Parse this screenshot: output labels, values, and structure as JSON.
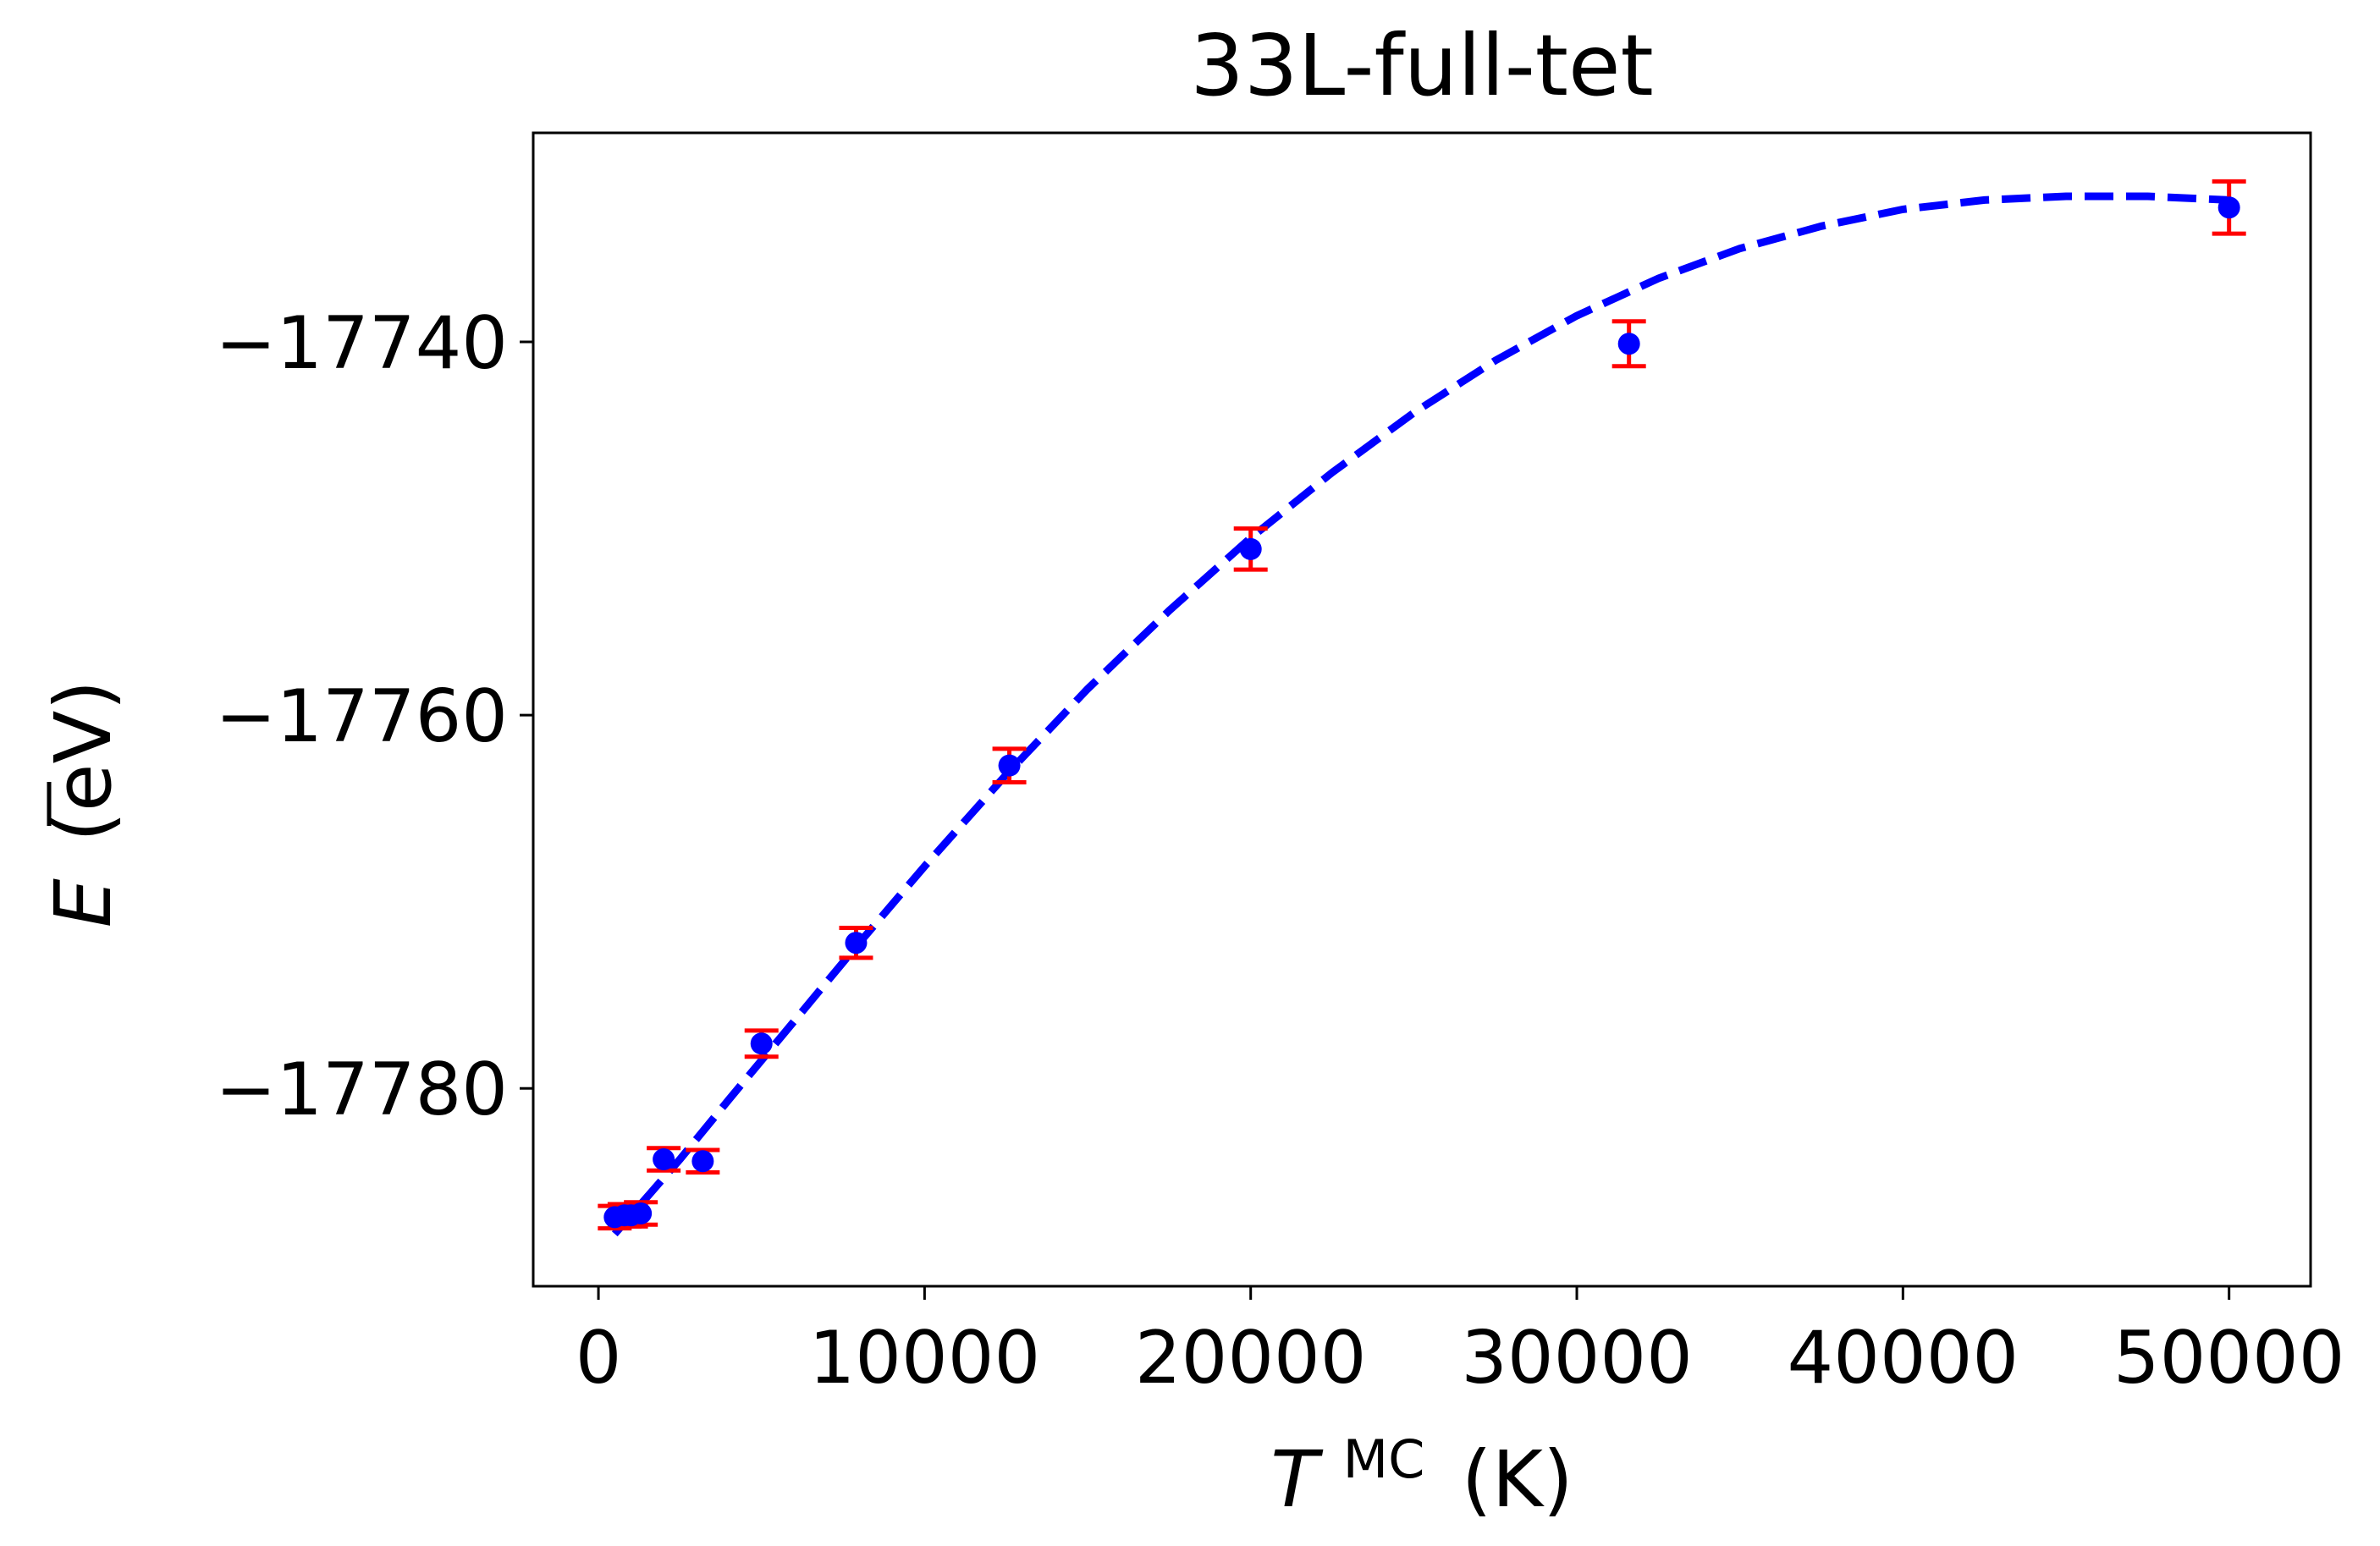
{
  "chart_data": {
    "type": "scatter",
    "title": "33L-full-tet",
    "xlabel": {
      "symbol": "T",
      "superscript": "MC",
      "unit": "(K)"
    },
    "ylabel": {
      "symbol": "E",
      "unit": "(eV)"
    },
    "xlim": [
      -2000,
      52500
    ],
    "ylim": [
      -17790.6,
      -17728.8
    ],
    "xticks": [
      0,
      10000,
      20000,
      30000,
      40000,
      50000
    ],
    "xtick_labels": [
      "0",
      "10000",
      "20000",
      "30000",
      "40000",
      "50000"
    ],
    "yticks": [
      -17740,
      -17760,
      -17780
    ],
    "ytick_labels": [
      "−17740",
      "−17760",
      "−17780"
    ],
    "grid": false,
    "colors": {
      "points": "#0000ff",
      "error_bars": "#ff0000",
      "fit_line": "#0000ff",
      "axes": "#000000"
    },
    "series": [
      {
        "kind": "points_with_error_bars",
        "points": [
          {
            "x": 500,
            "y": -17786.9,
            "err": 0.6
          },
          {
            "x": 800,
            "y": -17786.8,
            "err": 0.6
          },
          {
            "x": 1000,
            "y": -17786.8,
            "err": 0.6
          },
          {
            "x": 1300,
            "y": -17786.7,
            "err": 0.6
          },
          {
            "x": 2000,
            "y": -17783.8,
            "err": 0.6
          },
          {
            "x": 3200,
            "y": -17783.9,
            "err": 0.6
          },
          {
            "x": 5000,
            "y": -17777.6,
            "err": 0.7
          },
          {
            "x": 7900,
            "y": -17772.2,
            "err": 0.8
          },
          {
            "x": 12600,
            "y": -17762.7,
            "err": 0.9
          },
          {
            "x": 20000,
            "y": -17751.1,
            "err": 1.1
          },
          {
            "x": 31600,
            "y": -17740.1,
            "err": 1.2
          },
          {
            "x": 50000,
            "y": -17732.8,
            "err": 1.4
          }
        ]
      },
      {
        "kind": "fit_curve",
        "style": "dashed",
        "x": [
          500,
          1500,
          2500,
          4000,
          6000,
          8000,
          10000,
          12500,
          15000,
          17500,
          20000,
          22500,
          25000,
          27500,
          30000,
          32500,
          35000,
          37500,
          40000,
          42500,
          45000,
          47500,
          50000
        ],
        "y": [
          -17787.8,
          -17785.8,
          -17783.8,
          -17780.6,
          -17776.4,
          -17772.2,
          -17768.1,
          -17763.2,
          -17758.6,
          -17754.4,
          -17750.5,
          -17747.0,
          -17743.8,
          -17741.0,
          -17738.6,
          -17736.6,
          -17735.0,
          -17733.8,
          -17732.9,
          -17732.4,
          -17732.2,
          -17732.2,
          -17732.4
        ]
      }
    ]
  }
}
